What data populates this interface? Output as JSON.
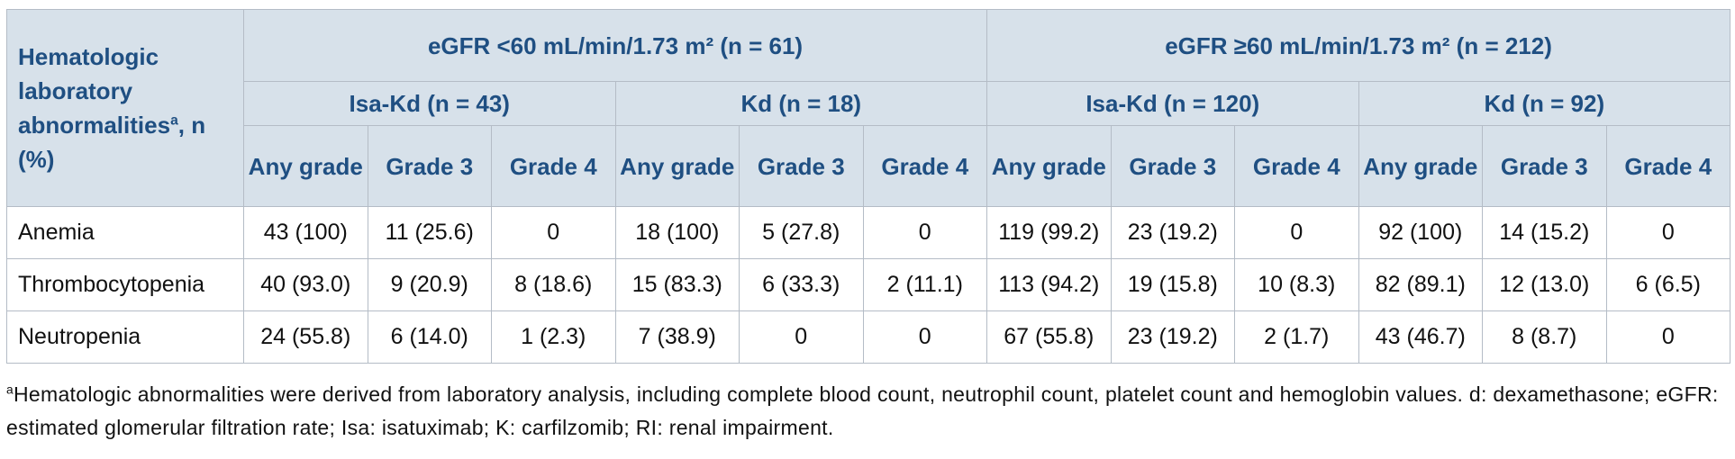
{
  "header": {
    "row_label": {
      "text": "Hematologic laboratory abnormalities",
      "sup": "a",
      "suffix": ", n (%)"
    },
    "groups": [
      {
        "label": "eGFR <60 mL/min/1.73 m² (n = 61)",
        "subgroups": [
          {
            "label": "Isa-Kd (n = 43)",
            "columns": [
              "Any grade",
              "Grade 3",
              "Grade 4"
            ]
          },
          {
            "label": "Kd (n = 18)",
            "columns": [
              "Any grade",
              "Grade 3",
              "Grade 4"
            ]
          }
        ]
      },
      {
        "label": "eGFR ≥60 mL/min/1.73 m² (n = 212)",
        "subgroups": [
          {
            "label": "Isa-Kd (n = 120)",
            "columns": [
              "Any grade",
              "Grade 3",
              "Grade 4"
            ]
          },
          {
            "label": "Kd (n = 92)",
            "columns": [
              "Any grade",
              "Grade 3",
              "Grade 4"
            ]
          }
        ]
      }
    ]
  },
  "rows": [
    {
      "label": "Anemia",
      "cells": [
        "43 (100)",
        "11 (25.6)",
        "0",
        "18 (100)",
        "5 (27.8)",
        "0",
        "119 (99.2)",
        "23 (19.2)",
        "0",
        "92 (100)",
        "14 (15.2)",
        "0"
      ]
    },
    {
      "label": "Thrombocytopenia",
      "cells": [
        "40 (93.0)",
        "9 (20.9)",
        "8 (18.6)",
        "15 (83.3)",
        "6 (33.3)",
        "2 (11.1)",
        "113 (94.2)",
        "19 (15.8)",
        "10 (8.3)",
        "82 (89.1)",
        "12 (13.0)",
        "6 (6.5)"
      ]
    },
    {
      "label": "Neutropenia",
      "cells": [
        "24 (55.8)",
        "6 (14.0)",
        "1 (2.3)",
        "7 (38.9)",
        "0",
        "0",
        "67 (55.8)",
        "23 (19.2)",
        "2 (1.7)",
        "43 (46.7)",
        "8 (8.7)",
        "0"
      ]
    }
  ],
  "footnote": {
    "mark": "a",
    "text": "Hematologic abnormalities were derived from laboratory analysis, including complete blood count, neutrophil count, platelet count and hemoglobin values. d: dexamethasone; eGFR: estimated glomerular filtration rate; Isa: isatuximab; K: carfilzomib; RI: renal impairment."
  }
}
